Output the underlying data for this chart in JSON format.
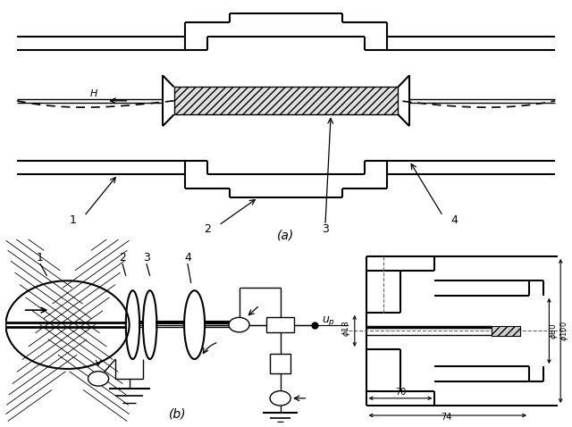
{
  "bg_color": "#ffffff",
  "lc": "#000000",
  "title_a": "(a)",
  "title_b": "(b)"
}
